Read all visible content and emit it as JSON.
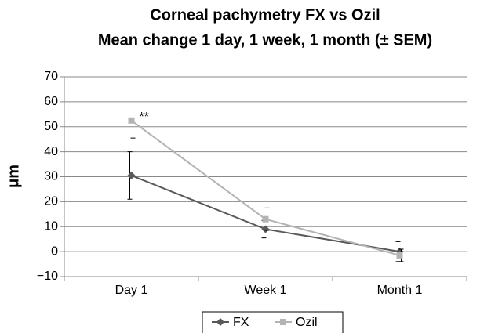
{
  "chart_data": {
    "type": "line",
    "title": "Corneal pachymetry FX vs Ozil",
    "subtitle": "Mean change 1 day, 1 week, 1 month (± SEM)",
    "y_label": "μm",
    "annotation": "**",
    "categories": [
      "Day 1",
      "Week 1",
      "Month 1"
    ],
    "series": [
      {
        "name": "FX",
        "color": "#595959",
        "marker": "diamond",
        "values": [
          30.5,
          9,
          0
        ],
        "errors": [
          9.5,
          3.5,
          4
        ]
      },
      {
        "name": "Ozil",
        "color": "#b3b3b3",
        "marker": "square",
        "values": [
          52.5,
          13,
          -1.5
        ],
        "errors": [
          7,
          4.5,
          2.5
        ]
      }
    ],
    "ylim": [
      -10,
      70
    ],
    "yticks": [
      {
        "value": -10,
        "label": "−10"
      },
      0,
      10,
      20,
      30,
      40,
      50,
      60,
      70
    ],
    "grid": true,
    "legend": "bottom"
  }
}
